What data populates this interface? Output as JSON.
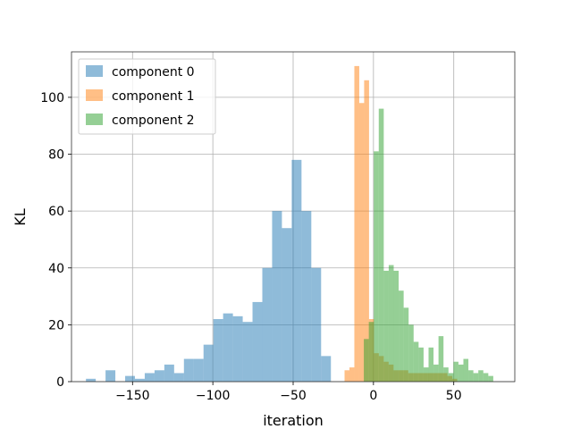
{
  "chart_data": {
    "type": "bar",
    "subtype": "overlapping-histogram",
    "title": "",
    "xlabel": "iteration",
    "ylabel": "KL",
    "xlim": [
      -188,
      88
    ],
    "ylim": [
      0,
      116
    ],
    "xticks": [
      -150,
      -100,
      -50,
      0,
      50
    ],
    "xtick_labels": [
      "−150",
      "−100",
      "−50",
      "0",
      "50"
    ],
    "yticks": [
      0,
      20,
      40,
      60,
      80,
      100
    ],
    "ytick_labels": [
      "0",
      "20",
      "40",
      "60",
      "80",
      "100"
    ],
    "grid": true,
    "legend": "top-left",
    "series": [
      {
        "name": "component 0",
        "color": "#1f77b4",
        "alpha": 0.5,
        "bin_start": -179,
        "bin_width": 6.1,
        "values": [
          1,
          0,
          4,
          0,
          2,
          1,
          3,
          4,
          6,
          3,
          8,
          8,
          13,
          22,
          24,
          23,
          21,
          28,
          40,
          60,
          54,
          78,
          60,
          40,
          9
        ]
      },
      {
        "name": "component 1",
        "color": "#ff7f0e",
        "alpha": 0.5,
        "bin_start": -18,
        "bin_width": 3.05,
        "values": [
          4,
          5,
          111,
          98,
          106,
          22,
          10,
          9,
          7,
          6,
          4,
          4,
          4,
          3,
          3,
          3,
          3,
          3,
          3,
          3,
          3,
          2,
          1
        ]
      },
      {
        "name": "component 2",
        "color": "#2ca02c",
        "alpha": 0.5,
        "bin_start": -6,
        "bin_width": 3.1,
        "values": [
          15,
          21,
          81,
          96,
          39,
          41,
          39,
          32,
          26,
          20,
          14,
          12,
          5,
          12,
          6,
          16,
          5,
          3,
          7,
          6,
          8,
          4,
          3,
          4,
          3,
          2
        ]
      }
    ]
  }
}
